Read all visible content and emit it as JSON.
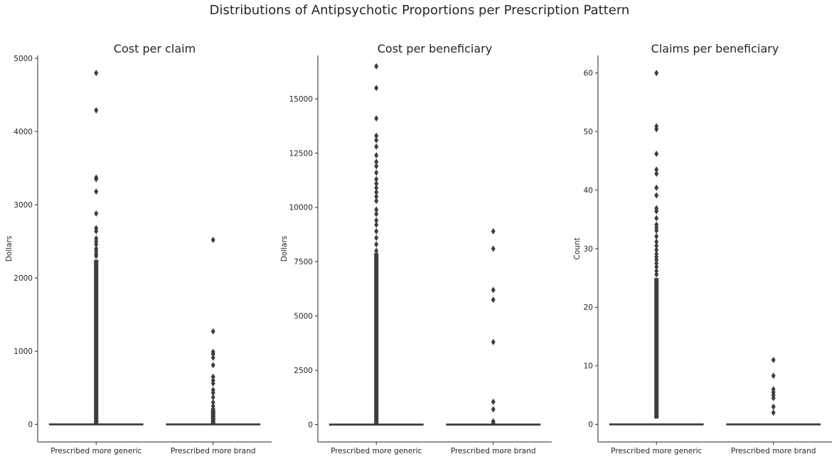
{
  "suptitle": "Distributions of Antipsychotic Proportions per Prescription Pattern",
  "chart_data": [
    {
      "type": "box",
      "title": "Cost per claim",
      "ylabel": "Dollars",
      "xlabel": "",
      "categories": [
        "Prescribed more generic",
        "Prescribed more brand"
      ],
      "ylim": [
        -240,
        5040
      ],
      "yticks": [
        0,
        1000,
        2000,
        3000,
        4000,
        5000
      ],
      "ytick_labels": [
        "0",
        "1000",
        "2000",
        "3000",
        "4000",
        "5000"
      ],
      "median": [
        0,
        0
      ],
      "dense_outlier_range": [
        [
          0,
          2250
        ],
        [
          0,
          200
        ]
      ],
      "outliers": [
        [
          4800,
          4290,
          3370,
          3350,
          3180,
          2880,
          2680,
          2640,
          2540,
          2500,
          2460,
          2400,
          2370,
          2330,
          2300
        ],
        [
          2520,
          1270,
          990,
          960,
          910,
          810,
          650,
          600,
          560,
          470,
          430,
          370,
          300,
          250,
          210
        ]
      ]
    },
    {
      "type": "box",
      "title": "Cost per beneficiary",
      "ylabel": "Dollars",
      "xlabel": "",
      "categories": [
        "Prescribed more generic",
        "Prescribed more brand"
      ],
      "ylim": [
        -800,
        17000
      ],
      "yticks": [
        0,
        2500,
        5000,
        7500,
        10000,
        12500,
        15000
      ],
      "ytick_labels": [
        "0",
        "2500",
        "5000",
        "7500",
        "10000",
        "12500",
        "15000"
      ],
      "median": [
        0,
        0
      ],
      "dense_outlier_range": [
        [
          0,
          7900
        ],
        [
          0,
          0
        ]
      ],
      "outliers": [
        [
          16500,
          15500,
          14100,
          13300,
          13100,
          12800,
          12400,
          12100,
          11900,
          11600,
          11300,
          11100,
          10900,
          10700,
          10500,
          10300,
          9900,
          9700,
          9400,
          9200,
          8900,
          8600,
          8300,
          8000
        ],
        [
          8900,
          8100,
          6200,
          5750,
          3800,
          1050,
          700,
          150,
          80
        ]
      ]
    },
    {
      "type": "box",
      "title": "Claims per beneficiary",
      "ylabel": "Count",
      "xlabel": "",
      "categories": [
        "Prescribed more generic",
        "Prescribed more brand"
      ],
      "ylim": [
        -3,
        63
      ],
      "yticks": [
        0,
        10,
        20,
        30,
        40,
        50,
        60
      ],
      "ytick_labels": [
        "0",
        "10",
        "20",
        "30",
        "40",
        "50",
        "60"
      ],
      "median": [
        0,
        0
      ],
      "dense_outlier_range": [
        [
          1,
          25
        ],
        [
          0,
          0
        ]
      ],
      "outliers": [
        [
          60,
          50.9,
          50.4,
          46.2,
          43.5,
          42.8,
          40.4,
          39.1,
          36.9,
          36.4,
          35.2,
          34.1,
          33.6,
          33.1,
          32.1,
          31.2,
          30.5,
          29.8,
          29.1,
          28.6,
          28.1,
          27.5,
          26.9,
          26.2,
          25.6
        ],
        [
          11,
          8.3,
          6,
          5.5,
          5,
          4.5,
          3,
          2
        ]
      ]
    }
  ]
}
